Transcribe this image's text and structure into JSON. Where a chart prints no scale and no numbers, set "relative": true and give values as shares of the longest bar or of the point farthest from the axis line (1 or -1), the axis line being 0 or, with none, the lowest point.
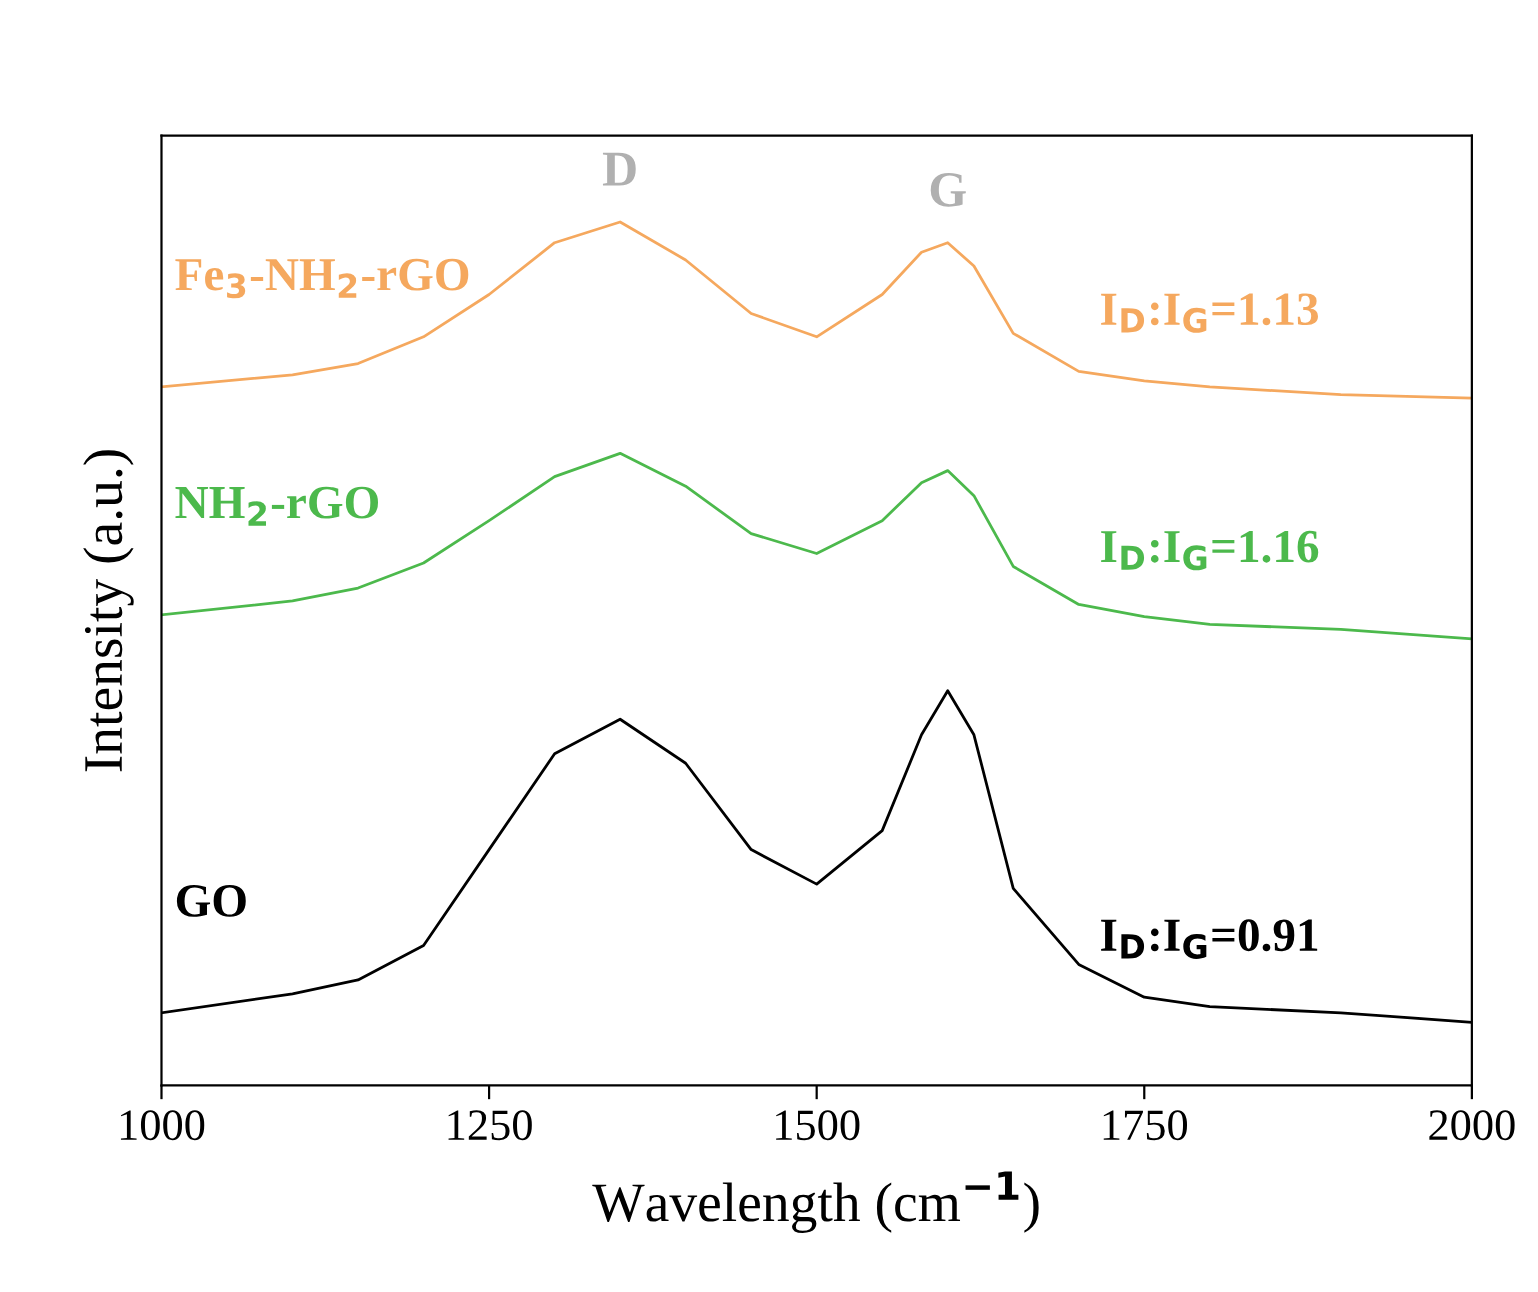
{
  "chart_data": {
    "type": "line",
    "relative": true,
    "xlabel": "Wavelength (cm$^{−1}$)",
    "ylabel": "Intensity (a.u.)",
    "xlim": [
      1000,
      2000
    ],
    "xticks": [
      1000,
      1250,
      1500,
      1750,
      2000
    ],
    "x": [
      1000,
      1100,
      1150,
      1200,
      1250,
      1300,
      1350,
      1400,
      1450,
      1500,
      1550,
      1580,
      1600,
      1620,
      1650,
      1700,
      1750,
      1800,
      1900,
      2000
    ],
    "series": [
      {
        "name": "Fe$_{3}$-NH$_{2}$-rGO",
        "color": "#f5a85e",
        "values": [
          0.809,
          0.823,
          0.836,
          0.867,
          0.916,
          0.976,
          1.0,
          0.956,
          0.894,
          0.867,
          0.916,
          0.965,
          0.976,
          0.949,
          0.871,
          0.827,
          0.816,
          0.809,
          0.8,
          0.796
        ]
      },
      {
        "name": "NH$_{2}$-rGO",
        "color": "#4cb94c",
        "values": [
          0.545,
          0.561,
          0.576,
          0.605,
          0.654,
          0.705,
          0.732,
          0.694,
          0.639,
          0.616,
          0.654,
          0.698,
          0.712,
          0.683,
          0.601,
          0.557,
          0.543,
          0.534,
          0.528,
          0.517
        ]
      },
      {
        "name": "GO",
        "color": "#000000",
        "values": [
          0.084,
          0.106,
          0.122,
          0.162,
          0.273,
          0.384,
          0.424,
          0.373,
          0.273,
          0.233,
          0.295,
          0.406,
          0.457,
          0.406,
          0.228,
          0.14,
          0.102,
          0.091,
          0.084,
          0.073
        ]
      }
    ],
    "annotations": [
      {
        "text": "D",
        "x": 1350,
        "y": 1.0
      },
      {
        "text": "G",
        "x": 1600,
        "y": 0.976
      },
      {
        "text": "I$_{D}$:I$_{G}$=1.13",
        "x": 1800,
        "y": 0.809
      },
      {
        "text": "I$_{D}$:I$_{G}$=1.16",
        "x": 1800,
        "y": 0.534
      },
      {
        "text": "I$_{D}$:I$_{G}$=0.91",
        "x": 1800,
        "y": 0.084
      }
    ],
    "grid": false,
    "legend": false
  }
}
